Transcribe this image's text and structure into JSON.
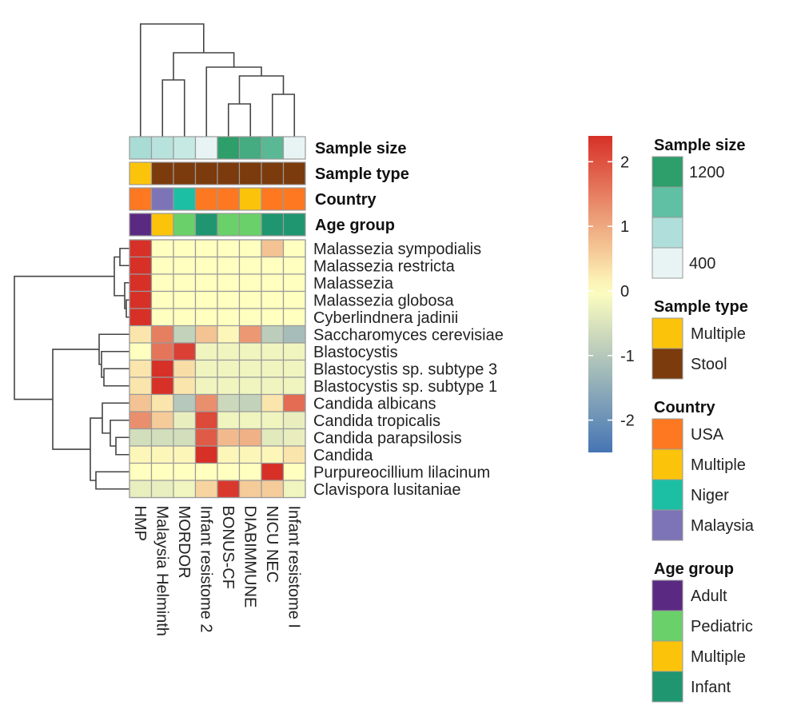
{
  "chart_data": {
    "type": "heatmap",
    "columns": [
      "HMP",
      "Malaysia Helminth",
      "MORDOR",
      "Infant resistome 2",
      "BONUS-CF",
      "DIABIMMUNE",
      "NICU NEC",
      "Infant resistome I"
    ],
    "rows": [
      "Malassezia sympodialis",
      "Malassezia restricta",
      "Malassezia",
      "Malassezia globosa",
      "Cyberlindnera jadinii",
      "Saccharomyces cerevisiae",
      "Blastocystis",
      "Blastocystis sp. subtype 3",
      "Blastocystis sp. subtype 1",
      "Candida albicans",
      "Candida tropicalis",
      "Candida parapsilosis",
      "Candida",
      "Purpureocillium lilacinum",
      "Clavispora lusitaniae"
    ],
    "values": [
      [
        2.4,
        0.0,
        0.0,
        0.0,
        0.0,
        0.0,
        0.7,
        0.0
      ],
      [
        2.4,
        0.0,
        0.0,
        0.0,
        0.0,
        0.0,
        0.0,
        0.0
      ],
      [
        2.4,
        0.0,
        0.0,
        0.0,
        0.0,
        0.0,
        0.0,
        0.0
      ],
      [
        2.4,
        0.0,
        0.0,
        0.0,
        0.0,
        0.0,
        0.0,
        0.0
      ],
      [
        2.4,
        0.0,
        0.0,
        0.0,
        0.0,
        0.0,
        0.0,
        0.0
      ],
      [
        0.3,
        1.5,
        -0.8,
        0.7,
        0.1,
        1.2,
        -0.9,
        -1.2
      ],
      [
        0.0,
        1.6,
        2.2,
        -0.2,
        -0.2,
        -0.2,
        -0.2,
        -0.2
      ],
      [
        0.3,
        2.4,
        0.4,
        -0.2,
        -0.2,
        -0.2,
        -0.2,
        -0.2
      ],
      [
        0.3,
        2.4,
        0.3,
        -0.2,
        -0.2,
        -0.2,
        -0.2,
        -0.2
      ],
      [
        0.7,
        0.3,
        -1.0,
        1.3,
        -0.7,
        -0.8,
        0.3,
        1.7
      ],
      [
        1.3,
        0.6,
        -0.3,
        2.1,
        -0.2,
        -0.2,
        -0.2,
        -0.3
      ],
      [
        -0.6,
        -0.6,
        -0.6,
        1.9,
        0.8,
        0.9,
        -0.4,
        -0.3
      ],
      [
        0.1,
        0.1,
        0.1,
        2.4,
        0.1,
        0.1,
        0.1,
        0.3
      ],
      [
        0.0,
        0.0,
        0.0,
        0.0,
        0.0,
        0.0,
        2.4,
        0.0
      ],
      [
        -0.3,
        -0.3,
        -0.2,
        0.5,
        2.3,
        0.6,
        0.6,
        -0.2
      ]
    ],
    "color_scale": {
      "min": -2.5,
      "max": 2.4,
      "ticks": [
        2,
        1,
        0,
        -1,
        -2
      ],
      "low_color": "#4575b4",
      "mid_color": "#ffffbf",
      "high_color": "#d73027"
    },
    "annotations": [
      {
        "label": "Sample size",
        "values": [
          "#a8dcd5",
          "#b8e2dc",
          "#c6e9e3",
          "#e8f4f4",
          "#2e9e6a",
          "#45ab80",
          "#5ab894",
          "#e8f4f4"
        ]
      },
      {
        "label": "Sample type",
        "values": [
          "Multiple",
          "Stool",
          "Stool",
          "Stool",
          "Stool",
          "Stool",
          "Stool",
          "Stool"
        ]
      },
      {
        "label": "Country",
        "values": [
          "USA",
          "Malaysia",
          "Niger",
          "USA",
          "USA",
          "Multiple",
          "USA",
          "USA"
        ]
      },
      {
        "label": "Age group",
        "values": [
          "Adult",
          "Multiple",
          "Pediatric",
          "Infant",
          "Pediatric",
          "Pediatric",
          "Infant",
          "Infant"
        ]
      }
    ],
    "legends": [
      {
        "title": "Sample size",
        "kind": "gradient",
        "labels": [
          "1200",
          "400"
        ],
        "colors": [
          "#2e9e6a",
          "#5fc0a4",
          "#b0dfdb",
          "#e8f4f4"
        ]
      },
      {
        "title": "Sample type",
        "kind": "categorical",
        "items": [
          {
            "label": "Multiple",
            "color": "#fbc40b"
          },
          {
            "label": "Stool",
            "color": "#7b3b0c"
          }
        ]
      },
      {
        "title": "Country",
        "kind": "categorical",
        "items": [
          {
            "label": "USA",
            "color": "#fd7820"
          },
          {
            "label": "Multiple",
            "color": "#fbc40b"
          },
          {
            "label": "Niger",
            "color": "#1dbfa4"
          },
          {
            "label": "Malaysia",
            "color": "#7d74b8"
          }
        ]
      },
      {
        "title": "Age group",
        "kind": "categorical",
        "items": [
          {
            "label": "Adult",
            "color": "#5a2a82"
          },
          {
            "label": "Pediatric",
            "color": "#6ad06a"
          },
          {
            "label": "Multiple",
            "color": "#fbc40b"
          },
          {
            "label": "Infant",
            "color": "#1f9670"
          }
        ]
      }
    ]
  }
}
